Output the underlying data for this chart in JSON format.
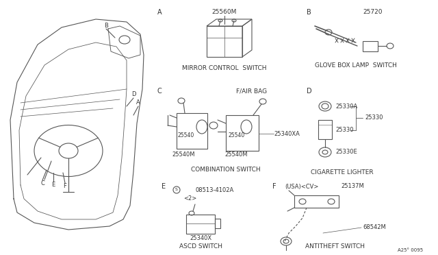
{
  "bg_color": "#ffffff",
  "line_color": "#555555",
  "text_color": "#333333",
  "page_code": "A25° 0095",
  "fig_w": 6.4,
  "fig_h": 3.72,
  "dpi": 100,
  "sections": {
    "A": {
      "label": "A",
      "part": "25560M",
      "name": "MIRROR CONTROL  SWITCH"
    },
    "B": {
      "label": "B",
      "part": "25720",
      "name": "GLOVE BOX LAMP  SWITCH"
    },
    "C": {
      "label": "C",
      "part1": "25540",
      "part2": "25540M",
      "part3": "25540",
      "part4": "25540M",
      "part5": "25340XA",
      "airbag": "F/AIR BAG",
      "name": "COMBINATION SWITCH"
    },
    "D": {
      "label": "D",
      "part1": "25330A",
      "part2": "25330",
      "part3": "25330E",
      "name": "CIGARETTE LIGHTER"
    },
    "E": {
      "label": "E",
      "sym": "S",
      "part1": "08513-4102A",
      "part2": "<2>",
      "part3": "25340X",
      "name": "ASCD SWITCH"
    },
    "F": {
      "label": "F",
      "part1": "(USA)<CV>",
      "part2": "25137M",
      "part3": "68542M",
      "name": "ANTITHEFT SWITCH"
    }
  }
}
